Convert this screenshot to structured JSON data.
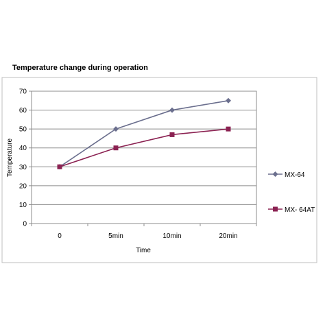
{
  "chart_data": {
    "type": "line",
    "title": "Temperature change during operation",
    "xlabel": "Time",
    "ylabel": "Temperature",
    "categories": [
      "0",
      "5min",
      "10min",
      "20min"
    ],
    "ylim": [
      0,
      70
    ],
    "yticks": [
      0,
      10,
      20,
      30,
      40,
      50,
      60,
      70
    ],
    "grid": true,
    "legend": "right",
    "series": [
      {
        "name": "MX-64",
        "values": [
          30,
          50,
          60,
          65
        ],
        "color": "#6b6f8e",
        "marker": "diamond"
      },
      {
        "name": "MX- 64AT",
        "values": [
          30,
          40,
          47,
          50
        ],
        "color": "#8b2252",
        "marker": "square"
      }
    ]
  }
}
